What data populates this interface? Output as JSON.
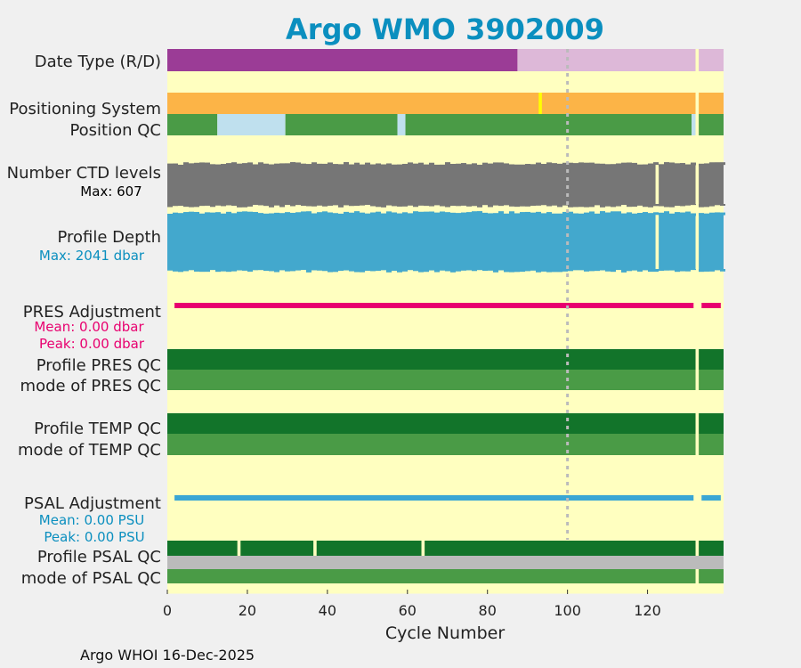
{
  "footer": "Argo WHOI 16-Dec-2025",
  "colors": {
    "background": "#ffffc0",
    "title": "#0b8fbf",
    "delayed_mode": "#9b3c96",
    "realtime_mode": "#ddb8d8",
    "positioning": "#fcb447",
    "positioning_marker": "#ffff00",
    "qc_good": "#4a9b46",
    "qc_interp": "#bfe0ee",
    "qc_dark": "#12742a",
    "qc_grey": "#bbbbbb",
    "ctd": "#767676",
    "depth": "#43a8cd",
    "pres_adj": "#e8006f",
    "psal_adj": "#3aa6d4",
    "gap": "#ffffc0",
    "dotted_line": "#bbbbbb"
  },
  "chart_data": {
    "type": "timeline",
    "title": "Argo WMO 3902009",
    "xlabel": "Cycle Number",
    "xlim": [
      0,
      139
    ],
    "xticks": [
      0,
      20,
      40,
      60,
      80,
      100,
      120
    ],
    "reference_line_x": 100,
    "rows": [
      {
        "key": "date_type",
        "label": "Date Type (R/D)",
        "segments": [
          {
            "start": 0,
            "end": 87.5,
            "color": "delayed_mode"
          },
          {
            "start": 87.5,
            "end": 132,
            "color": "realtime_mode"
          },
          {
            "start": 132.8,
            "end": 139,
            "color": "realtime_mode"
          }
        ]
      },
      {
        "key": "positioning_system",
        "label": "Positioning System",
        "segments": [
          {
            "start": 0,
            "end": 132,
            "color": "positioning"
          },
          {
            "start": 92.8,
            "end": 93.6,
            "color": "positioning_marker"
          },
          {
            "start": 132.8,
            "end": 139,
            "color": "positioning"
          }
        ]
      },
      {
        "key": "position_qc",
        "label": "Position QC",
        "segments": [
          {
            "start": 0,
            "end": 12.5,
            "color": "qc_good"
          },
          {
            "start": 12.5,
            "end": 29.5,
            "color": "qc_interp"
          },
          {
            "start": 29.5,
            "end": 57.5,
            "color": "qc_good"
          },
          {
            "start": 57.5,
            "end": 59.5,
            "color": "qc_interp"
          },
          {
            "start": 59.5,
            "end": 131,
            "color": "qc_good"
          },
          {
            "start": 131,
            "end": 132,
            "color": "qc_interp"
          },
          {
            "start": 132.8,
            "end": 139,
            "color": "qc_good"
          }
        ]
      },
      {
        "key": "ctd_levels",
        "label": "Number CTD levels",
        "detail": "Max: 607",
        "detail_color": "#000000",
        "segments": [
          {
            "start": 0,
            "end": 122,
            "color": "ctd"
          },
          {
            "start": 122.8,
            "end": 132,
            "color": "ctd"
          },
          {
            "start": 132.8,
            "end": 139,
            "color": "ctd"
          }
        ]
      },
      {
        "key": "profile_depth",
        "label": "Profile Depth",
        "detail": "Max: 2041 dbar",
        "detail_color": "#0b8fbf",
        "segments": [
          {
            "start": 0,
            "end": 122,
            "color": "depth"
          },
          {
            "start": 122.8,
            "end": 132,
            "color": "depth"
          },
          {
            "start": 132.8,
            "end": 139,
            "color": "depth"
          }
        ]
      },
      {
        "key": "pres_adjustment",
        "label": "PRES Adjustment",
        "mean": "Mean: 0.00 dbar",
        "peak": "Peak: 0.00 dbar",
        "stat_color": "#e8006f",
        "segments": [
          {
            "start": 1.8,
            "end": 131.5,
            "color": "pres_adj"
          },
          {
            "start": 133.5,
            "end": 138.3,
            "color": "pres_adj"
          }
        ]
      },
      {
        "key": "profile_pres_qc",
        "label": "Profile PRES QC",
        "segments": [
          {
            "start": 0,
            "end": 132,
            "color": "qc_dark"
          },
          {
            "start": 132.8,
            "end": 139,
            "color": "qc_dark"
          }
        ]
      },
      {
        "key": "mode_pres_qc",
        "label": "mode of PRES QC",
        "segments": [
          {
            "start": 0,
            "end": 132,
            "color": "qc_good"
          },
          {
            "start": 132.8,
            "end": 139,
            "color": "qc_good"
          }
        ]
      },
      {
        "key": "profile_temp_qc",
        "label": "Profile TEMP QC",
        "segments": [
          {
            "start": 0,
            "end": 132,
            "color": "qc_dark"
          },
          {
            "start": 132.8,
            "end": 139,
            "color": "qc_dark"
          }
        ]
      },
      {
        "key": "mode_temp_qc",
        "label": "mode of TEMP QC",
        "segments": [
          {
            "start": 0,
            "end": 132,
            "color": "qc_good"
          },
          {
            "start": 132.8,
            "end": 139,
            "color": "qc_good"
          }
        ]
      },
      {
        "key": "psal_adjustment",
        "label": "PSAL Adjustment",
        "mean": "Mean: 0.00 PSU",
        "peak": "Peak: 0.00 PSU",
        "stat_color": "#0b8fbf",
        "segments": [
          {
            "start": 1.8,
            "end": 131.5,
            "color": "psal_adj"
          },
          {
            "start": 133.5,
            "end": 138.3,
            "color": "psal_adj"
          }
        ]
      },
      {
        "key": "profile_psal_qc",
        "label": "Profile PSAL QC",
        "segments": [
          {
            "start": 0,
            "end": 17.5,
            "color": "qc_dark"
          },
          {
            "start": 18.3,
            "end": 36.5,
            "color": "qc_dark"
          },
          {
            "start": 37.3,
            "end": 63.5,
            "color": "qc_dark"
          },
          {
            "start": 64.3,
            "end": 132,
            "color": "qc_dark"
          },
          {
            "start": 132.8,
            "end": 139,
            "color": "qc_dark"
          }
        ]
      },
      {
        "key": "mode_psal_qc_grey",
        "segments": [
          {
            "start": 0,
            "end": 139,
            "color": "qc_grey"
          }
        ]
      },
      {
        "key": "mode_psal_qc",
        "label": "mode of PSAL QC",
        "segments": [
          {
            "start": 0,
            "end": 132,
            "color": "qc_good"
          },
          {
            "start": 132.8,
            "end": 139,
            "color": "qc_good"
          }
        ]
      }
    ]
  }
}
